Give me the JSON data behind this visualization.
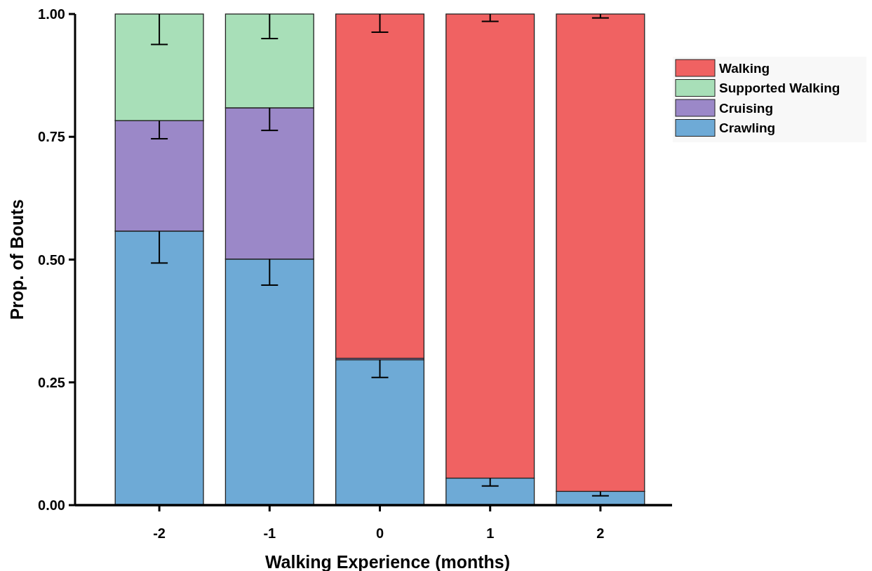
{
  "chart_data": {
    "type": "bar",
    "stacked": true,
    "xlabel": "Walking Experience (months)",
    "ylabel": "Prop. of Bouts",
    "categories": [
      "-2",
      "-1",
      "0",
      "1",
      "2"
    ],
    "series": [
      {
        "name": "Crawling",
        "color": "#6eaad6",
        "values": [
          0.558,
          0.501,
          0.296,
          0.055,
          0.028
        ],
        "errors": [
          [
            0.493,
            0.558
          ],
          [
            0.448,
            0.501
          ],
          [
            0.26,
            0.296
          ],
          [
            0.039,
            0.055
          ],
          [
            0.019,
            0.028
          ]
        ]
      },
      {
        "name": "Cruising",
        "color": "#9b88c8",
        "values": [
          0.225,
          0.308,
          0.003,
          null,
          null
        ],
        "errors": [
          [
            0.746,
            0.783
          ],
          [
            0.763,
            0.809
          ],
          null,
          null,
          null
        ]
      },
      {
        "name": "Supported Walking",
        "color": "#a8dfb8",
        "values": [
          0.217,
          0.191,
          0,
          0,
          0
        ],
        "errors": [
          [
            0.938,
            1
          ],
          [
            0.95,
            1
          ],
          null,
          null,
          null
        ]
      },
      {
        "name": "Walking",
        "color": "#f06262",
        "values": [
          0,
          0,
          0.701,
          0.945,
          0.972
        ],
        "errors": [
          null,
          null,
          [
            0.963,
            1
          ],
          [
            0.985,
            1
          ],
          [
            0.992,
            1
          ]
        ]
      }
    ],
    "ylim": [
      0,
      1
    ],
    "yticks": [
      {
        "value": 0,
        "label": "0.00"
      },
      {
        "value": 0.25,
        "label": "0.25"
      },
      {
        "value": 0.5,
        "label": "0.50"
      },
      {
        "value": 0.75,
        "label": "0.75"
      },
      {
        "value": 1,
        "label": "1.00"
      }
    ],
    "grid": false,
    "legend": "top right"
  }
}
